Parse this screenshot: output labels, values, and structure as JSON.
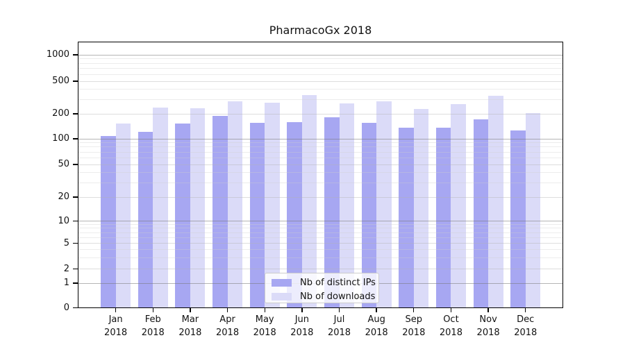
{
  "chart_data": {
    "type": "bar",
    "title": "PharmacoGx 2018",
    "categories": [
      "Jan 2018",
      "Feb 2018",
      "Mar 2018",
      "Apr 2018",
      "May 2018",
      "Jun 2018",
      "Jul 2018",
      "Aug 2018",
      "Sep 2018",
      "Oct 2018",
      "Nov 2018",
      "Dec 2018"
    ],
    "x_tick_months": [
      "Jan",
      "Feb",
      "Mar",
      "Apr",
      "May",
      "Jun",
      "Jul",
      "Aug",
      "Sep",
      "Oct",
      "Nov",
      "Dec"
    ],
    "x_tick_year": "2018",
    "series": [
      {
        "name": "Nb of distinct IPs",
        "color": "#a7a7f2",
        "values": [
          108,
          122,
          153,
          190,
          157,
          160,
          183,
          157,
          135,
          136,
          171,
          125
        ]
      },
      {
        "name": "Nb of downloads",
        "color": "#dbdbf8",
        "values": [
          152,
          240,
          234,
          284,
          272,
          338,
          270,
          283,
          229,
          263,
          333,
          204
        ]
      }
    ],
    "y_axis": {
      "scale": "symlog",
      "ticks": [
        {
          "label": "1000",
          "value": 1000
        },
        {
          "label": "500",
          "value": 500
        },
        {
          "label": "200",
          "value": 200
        },
        {
          "label": "100",
          "value": 100
        },
        {
          "label": "50",
          "value": 50
        },
        {
          "label": "20",
          "value": 20
        },
        {
          "label": "10",
          "value": 10
        },
        {
          "label": "5",
          "value": 5
        },
        {
          "label": "2",
          "value": 2
        },
        {
          "label": "1",
          "value": 1
        },
        {
          "label": "0",
          "value": 0
        }
      ]
    },
    "ylim": [
      0,
      1440
    ],
    "grid": true,
    "legend_position": "inside-bottom-center"
  },
  "legend": {
    "items": [
      "Nb of distinct IPs",
      "Nb of downloads"
    ]
  }
}
